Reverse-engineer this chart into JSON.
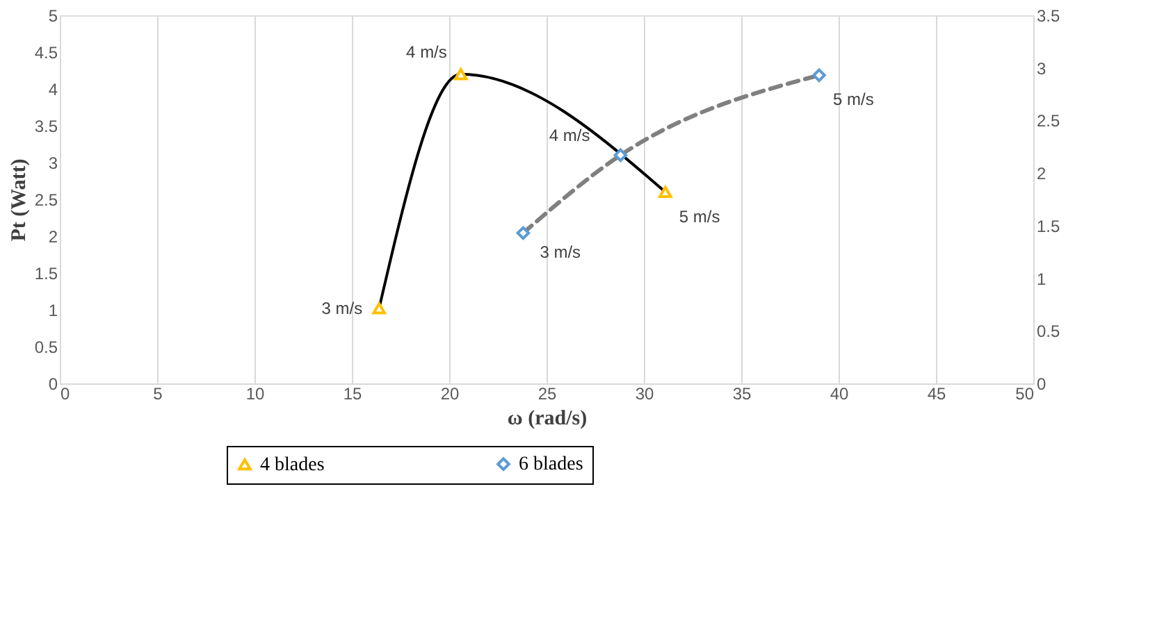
{
  "chart_data": {
    "type": "line",
    "xlabel": "ω (rad/s)",
    "ylabel": "Pt (Watt)",
    "xlim": [
      0,
      50
    ],
    "xticks": [
      0,
      5,
      10,
      15,
      20,
      25,
      30,
      35,
      40,
      45,
      50
    ],
    "ylim": [
      0,
      5
    ],
    "yticks": [
      0,
      0.5,
      1,
      1.5,
      2,
      2.5,
      3,
      3.5,
      4,
      4.5,
      5
    ],
    "y2lim": [
      0,
      3.5
    ],
    "y2ticks": [
      0,
      0.5,
      1,
      1.5,
      2,
      2.5,
      3,
      3.5
    ],
    "grid": "x",
    "legend": "bottom",
    "series": [
      {
        "name": "4 blades",
        "color": "#000000",
        "x": [
          16.4,
          20.6,
          31.1
        ],
        "values": [
          1.02,
          4.2,
          2.6
        ],
        "marker": "triangle",
        "line_style": "solid"
      },
      {
        "name": "6 blades",
        "color": "#808080",
        "x": [
          23.8,
          28.8,
          39.0
        ],
        "values": [
          1.43,
          2.17,
          2.93
        ],
        "marker": "diamond",
        "line_style": "dashed",
        "axis": "y2"
      }
    ],
    "annotations": [
      {
        "text": "3 m/s",
        "x": 16.4,
        "y": 1.02
      },
      {
        "text": "4 m/s",
        "x": 20.6,
        "y": 4.2
      },
      {
        "text": "5 m/s",
        "x": 31.1,
        "y": 2.6
      },
      {
        "text": "4 m/s",
        "x": 28.8,
        "y": 3.1
      },
      {
        "text": "3 m/s",
        "x": 23.8,
        "y": 2.05
      },
      {
        "text": "5 m/s",
        "x": 39.0,
        "y": 4.2
      }
    ]
  }
}
